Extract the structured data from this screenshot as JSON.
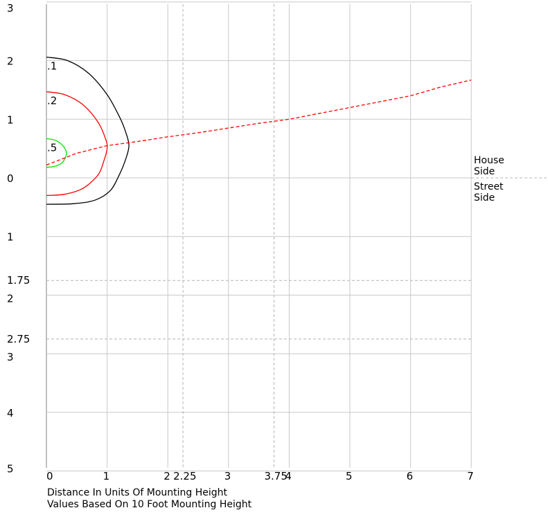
{
  "chart_data": {
    "type": "line",
    "title": "",
    "xlabel": "Distance In Units Of Mounting Height",
    "ylabel": "",
    "caption": "Values Based On 10 Foot Mounting Height",
    "xlim": [
      0,
      7
    ],
    "ylim_house": [
      0,
      3
    ],
    "ylim_street": [
      0,
      5
    ],
    "x_ticks": [
      "0",
      "1",
      "2",
      "3",
      "4",
      "5",
      "6",
      "7"
    ],
    "x_dashed_ticks": [
      "2.25",
      "3.75"
    ],
    "y_house_ticks": [
      "0",
      "1",
      "2",
      "3"
    ],
    "y_street_ticks": [
      "1",
      "2",
      "3",
      "4",
      "5"
    ],
    "y_street_dashed_ticks": [
      "1.75",
      "2.75"
    ],
    "side_labels": {
      "house": "House\nSide",
      "street": "Street\nSide"
    },
    "grid": true,
    "colors": {
      "grid": "#c8c8c8",
      "c01": "#000000",
      "c02": "#ff0000",
      "c05": "#00e600",
      "max_line": "#ff0000",
      "dashed_grid": "#b4b4b4"
    },
    "contours": [
      {
        "name": ".1",
        "color": "#000000",
        "points": [
          [
            0,
            2.06
          ],
          [
            0.35,
            2.0
          ],
          [
            0.7,
            1.78
          ],
          [
            1.0,
            1.42
          ],
          [
            1.2,
            1.05
          ],
          [
            1.3,
            0.8
          ],
          [
            1.36,
            0.55
          ],
          [
            1.3,
            0.3
          ],
          [
            1.2,
            0.05
          ],
          [
            1.05,
            -0.22
          ],
          [
            0.8,
            -0.38
          ],
          [
            0.45,
            -0.44
          ],
          [
            0,
            -0.45
          ]
        ]
      },
      {
        "name": ".2",
        "color": "#ff0000",
        "points": [
          [
            0,
            1.47
          ],
          [
            0.3,
            1.42
          ],
          [
            0.6,
            1.25
          ],
          [
            0.85,
            0.95
          ],
          [
            0.98,
            0.65
          ],
          [
            1.0,
            0.5
          ],
          [
            0.95,
            0.3
          ],
          [
            0.85,
            0.05
          ],
          [
            0.6,
            -0.18
          ],
          [
            0.3,
            -0.28
          ],
          [
            0,
            -0.3
          ]
        ]
      },
      {
        "name": ".5",
        "color": "#00e600",
        "points": [
          [
            0,
            0.67
          ],
          [
            0.15,
            0.64
          ],
          [
            0.27,
            0.55
          ],
          [
            0.33,
            0.42
          ],
          [
            0.27,
            0.27
          ],
          [
            0.15,
            0.2
          ],
          [
            0,
            0.18
          ]
        ]
      }
    ],
    "max_candela_line": [
      [
        0,
        0.22
      ],
      [
        0.5,
        0.42
      ],
      [
        1,
        0.55
      ],
      [
        1.5,
        0.62
      ],
      [
        2,
        0.7
      ],
      [
        2.5,
        0.77
      ],
      [
        3,
        0.85
      ],
      [
        3.5,
        0.93
      ],
      [
        4,
        1.0
      ],
      [
        4.5,
        1.1
      ],
      [
        5,
        1.2
      ],
      [
        5.5,
        1.3
      ],
      [
        6,
        1.4
      ],
      [
        6.5,
        1.55
      ],
      [
        7,
        1.67
      ]
    ]
  }
}
